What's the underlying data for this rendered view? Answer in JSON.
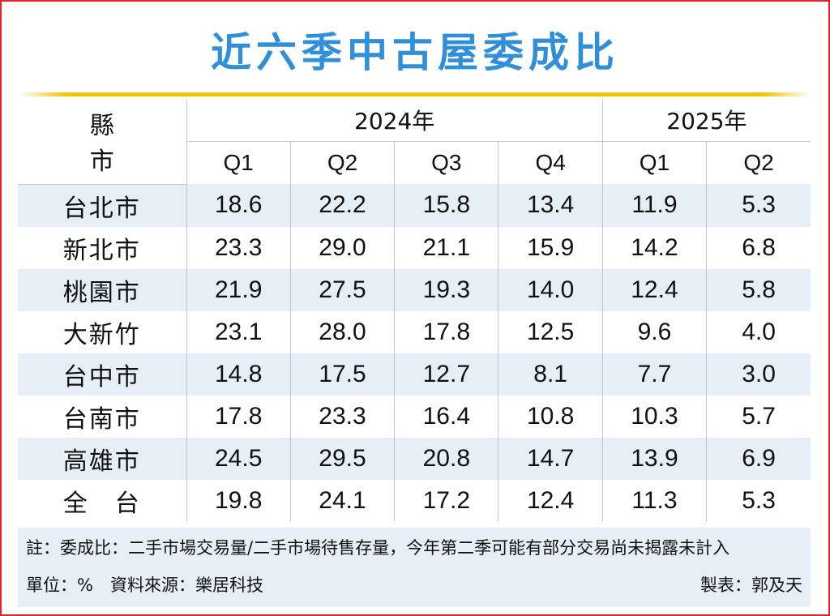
{
  "chart_data": {
    "type": "table",
    "title": "近六季中古屋委成比",
    "row_header_label": "縣　市",
    "years": [
      {
        "label": "2024年",
        "quarters": [
          "Q1",
          "Q2",
          "Q3",
          "Q4"
        ]
      },
      {
        "label": "2025年",
        "quarters": [
          "Q1",
          "Q2"
        ]
      }
    ],
    "columns": [
      "2024 Q1",
      "2024 Q2",
      "2024 Q3",
      "2024 Q4",
      "2025 Q1",
      "2025 Q2"
    ],
    "rows": [
      {
        "name": "台北市",
        "values": [
          "18.6",
          "22.2",
          "15.8",
          "13.4",
          "11.9",
          "5.3"
        ]
      },
      {
        "name": "新北市",
        "values": [
          "23.3",
          "29.0",
          "21.1",
          "15.9",
          "14.2",
          "6.8"
        ]
      },
      {
        "name": "桃園市",
        "values": [
          "21.9",
          "27.5",
          "19.3",
          "14.0",
          "12.4",
          "5.8"
        ]
      },
      {
        "name": "大新竹",
        "values": [
          "23.1",
          "28.0",
          "17.8",
          "12.5",
          "9.6",
          "4.0"
        ]
      },
      {
        "name": "台中市",
        "values": [
          "14.8",
          "17.5",
          "12.7",
          "8.1",
          "7.7",
          "3.0"
        ]
      },
      {
        "name": "台南市",
        "values": [
          "17.8",
          "23.3",
          "16.4",
          "10.8",
          "10.3",
          "5.7"
        ]
      },
      {
        "name": "高雄市",
        "values": [
          "24.5",
          "29.5",
          "20.8",
          "14.7",
          "13.9",
          "6.9"
        ]
      },
      {
        "name": "全　台",
        "values": [
          "19.8",
          "24.1",
          "17.2",
          "12.4",
          "11.3",
          "5.3"
        ]
      }
    ],
    "note": "註：委成比：二手市場交易量/二手市場待售存量，今年第二季可能有部分交易尚未揭露未計入",
    "unit_source": "單位：%　資料來源：樂居科技",
    "credit": "製表：郭及天"
  },
  "colors": {
    "title": "#2f8fd8",
    "accent_rule": "#f2c300",
    "row_shade": "#e6eef6",
    "frame": "#e0242c"
  }
}
